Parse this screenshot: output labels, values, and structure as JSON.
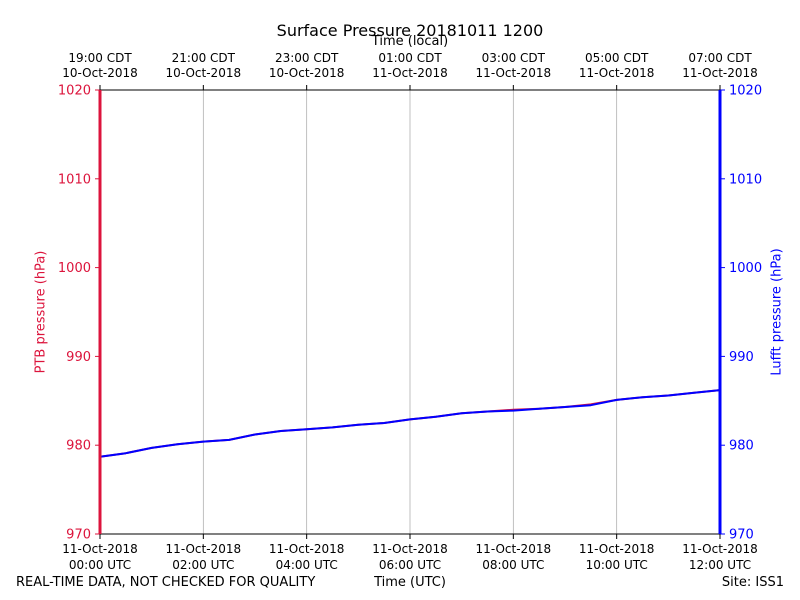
{
  "chart_data": {
    "type": "line",
    "title": "Surface Pressure 20181011 1200",
    "top_axis_label": "Time (local)",
    "xlabel": "Time (UTC)",
    "ylabel_left": "PTB pressure (hPa)",
    "ylabel_right": "Lufft pressure (hPa)",
    "xlim_hours_utc": [
      0,
      12
    ],
    "ylim": [
      970,
      1020
    ],
    "y_ticks": [
      970,
      980,
      990,
      1000,
      1010,
      1020
    ],
    "grid": "vertical",
    "bottom_ticks": [
      {
        "hour": 0,
        "line1": "11-Oct-2018",
        "line2": "00:00 UTC"
      },
      {
        "hour": 2,
        "line1": "11-Oct-2018",
        "line2": "02:00 UTC"
      },
      {
        "hour": 4,
        "line1": "11-Oct-2018",
        "line2": "04:00 UTC"
      },
      {
        "hour": 6,
        "line1": "11-Oct-2018",
        "line2": "06:00 UTC"
      },
      {
        "hour": 8,
        "line1": "11-Oct-2018",
        "line2": "08:00 UTC"
      },
      {
        "hour": 10,
        "line1": "11-Oct-2018",
        "line2": "10:00 UTC"
      },
      {
        "hour": 12,
        "line1": "11-Oct-2018",
        "line2": "12:00 UTC"
      }
    ],
    "top_ticks": [
      {
        "hour": 0,
        "line1": "19:00 CDT",
        "line2": "10-Oct-2018"
      },
      {
        "hour": 2,
        "line1": "21:00 CDT",
        "line2": "10-Oct-2018"
      },
      {
        "hour": 4,
        "line1": "23:00 CDT",
        "line2": "10-Oct-2018"
      },
      {
        "hour": 6,
        "line1": "01:00 CDT",
        "line2": "11-Oct-2018"
      },
      {
        "hour": 8,
        "line1": "03:00 CDT",
        "line2": "11-Oct-2018"
      },
      {
        "hour": 10,
        "line1": "05:00 CDT",
        "line2": "11-Oct-2018"
      },
      {
        "hour": 12,
        "line1": "07:00 CDT",
        "line2": "11-Oct-2018"
      }
    ],
    "series": [
      {
        "name": "PTB pressure",
        "color": "#dc143c",
        "hours": [
          0,
          0.5,
          1,
          1.5,
          2,
          2.5,
          3,
          3.5,
          4,
          4.5,
          5,
          5.5,
          6,
          6.5,
          7,
          7.5,
          8,
          8.5,
          9,
          9.5,
          10,
          10.5,
          11,
          11.5,
          12
        ],
        "values": [
          978.7,
          979.1,
          979.7,
          980.1,
          980.4,
          980.6,
          981.2,
          981.6,
          981.8,
          982.0,
          982.3,
          982.5,
          982.9,
          983.2,
          983.6,
          983.8,
          984.0,
          984.1,
          984.3,
          984.6,
          985.1,
          985.4,
          985.6,
          985.9,
          986.2
        ]
      },
      {
        "name": "Lufft pressure",
        "color": "#0000ff",
        "hours": [
          0,
          0.5,
          1,
          1.5,
          2,
          2.5,
          3,
          3.5,
          4,
          4.5,
          5,
          5.5,
          6,
          6.5,
          7,
          7.5,
          8,
          8.5,
          9,
          9.5,
          10,
          10.5,
          11,
          11.5,
          12
        ],
        "values": [
          978.7,
          979.1,
          979.7,
          980.1,
          980.4,
          980.6,
          981.2,
          981.6,
          981.8,
          982.0,
          982.3,
          982.5,
          982.9,
          983.2,
          983.6,
          983.8,
          983.9,
          984.1,
          984.3,
          984.5,
          985.1,
          985.4,
          985.6,
          985.9,
          986.2
        ]
      }
    ]
  },
  "footer": {
    "left_note": "REAL-TIME DATA, NOT CHECKED FOR QUALITY",
    "site": "Site: ISS1"
  },
  "colors": {
    "left_axis": "#dc143c",
    "right_axis": "#0000ff",
    "grid": "#b0b0b0"
  }
}
